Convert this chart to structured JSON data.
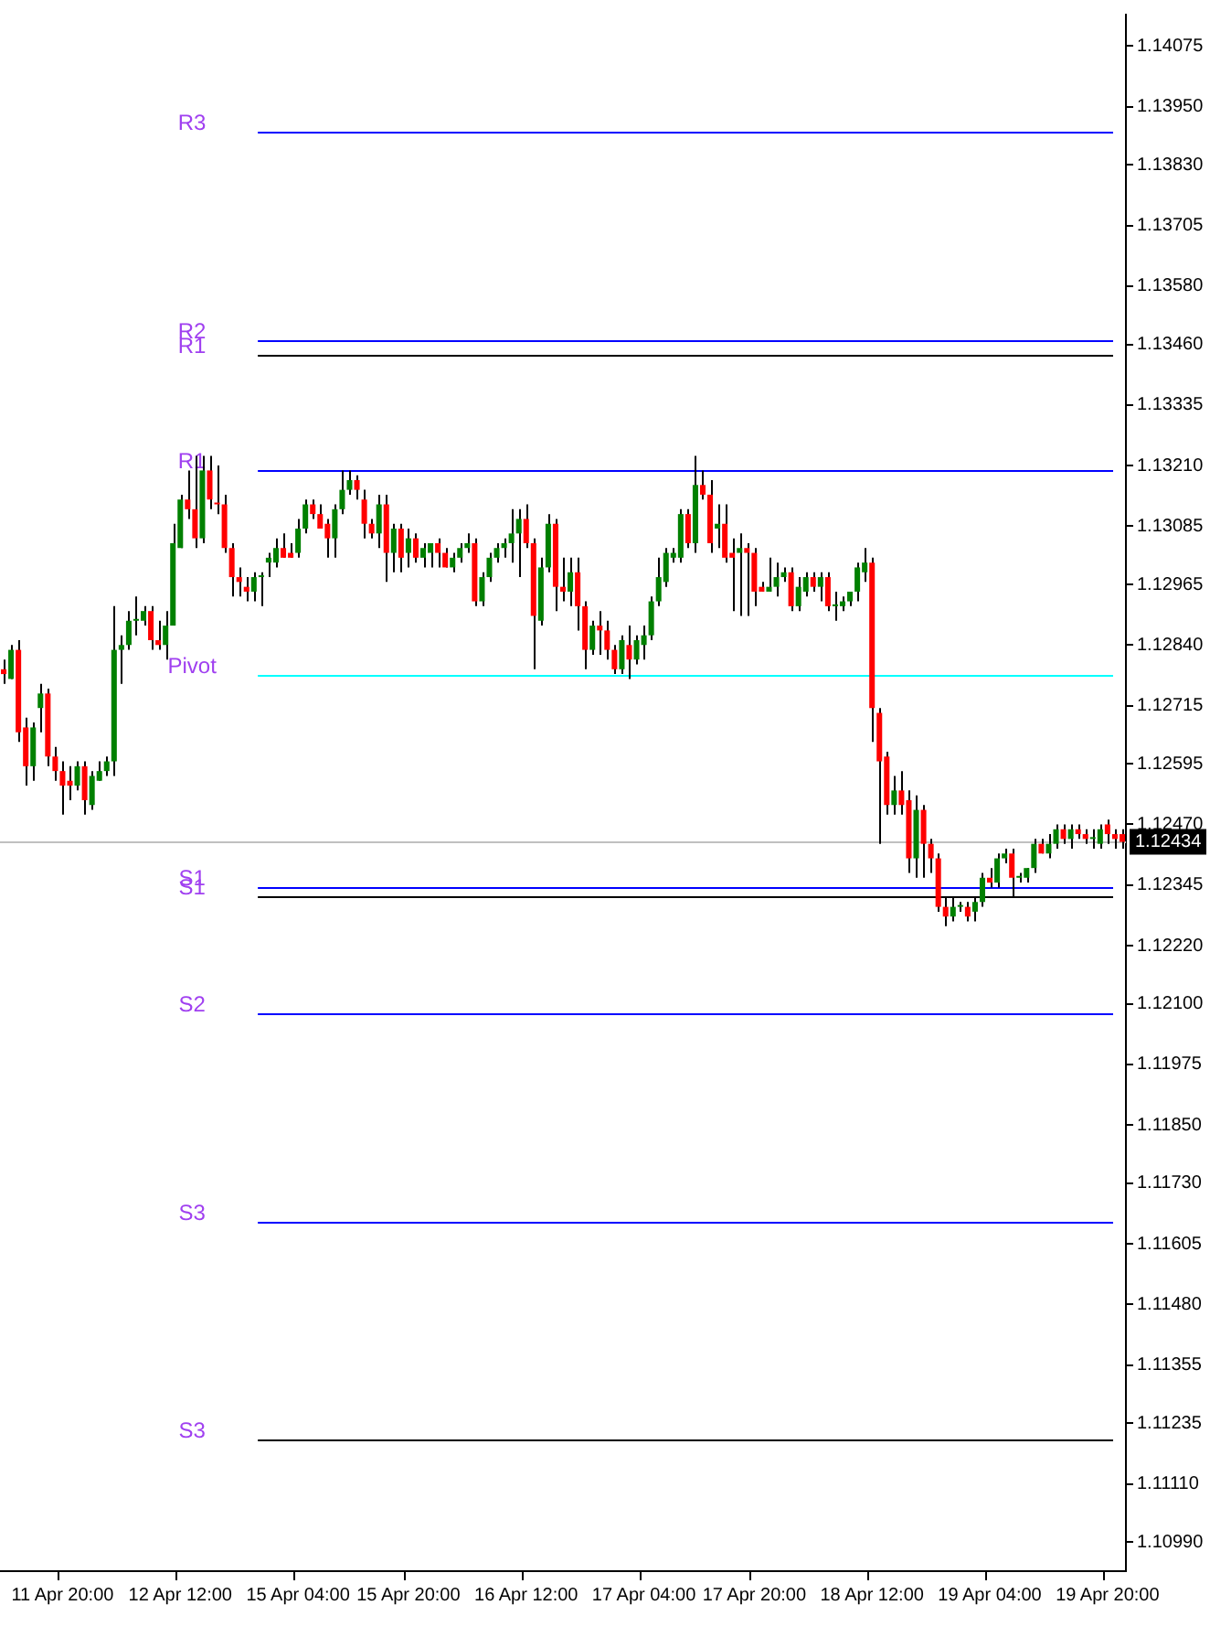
{
  "chart_data": {
    "type": "candlestick",
    "categories": [
      null,
      null,
      null,
      null,
      null,
      null,
      null,
      null,
      "11 Apr 20:00",
      null,
      null,
      null,
      null,
      null,
      null,
      null,
      null,
      null,
      null,
      null,
      null,
      null,
      null,
      null,
      "12 Apr 12:00",
      null,
      null,
      null,
      null,
      null,
      null,
      null,
      null,
      null,
      null,
      null,
      null,
      null,
      null,
      null,
      "15 Apr 04:00",
      null,
      null,
      null,
      null,
      null,
      null,
      null,
      null,
      null,
      null,
      null,
      null,
      null,
      null,
      "15 Apr 20:00",
      null,
      null,
      null,
      null,
      null,
      null,
      null,
      null,
      null,
      null,
      null,
      null,
      null,
      null,
      null,
      "16 Apr 12:00",
      null,
      null,
      null,
      null,
      null,
      null,
      null,
      null,
      null,
      null,
      null,
      null,
      null,
      null,
      null,
      "17 Apr 04:00",
      null,
      null,
      null,
      null,
      null,
      null,
      null,
      null,
      null,
      null,
      null,
      null,
      null,
      null,
      "17 Apr 20:00",
      null,
      null,
      null,
      null,
      null,
      null,
      null,
      null,
      null,
      null,
      null,
      null,
      null,
      null,
      null,
      "18 Apr 12:00",
      null,
      null,
      null,
      null,
      null,
      null,
      null,
      null,
      null,
      null,
      null,
      null,
      null,
      null,
      null,
      "19 Apr 04:00",
      null,
      null,
      null,
      null,
      null,
      null,
      null,
      null,
      null,
      null,
      null,
      null,
      null,
      null,
      null,
      "19 Apr 20:00",
      null,
      null
    ],
    "ohlc": [
      [
        1.1279,
        1.1281,
        1.1276,
        1.1278
      ],
      [
        1.1277,
        1.1284,
        1.1277,
        1.1283
      ],
      [
        1.1283,
        1.1285,
        1.1264,
        1.1266
      ],
      [
        1.1267,
        1.1269,
        1.1255,
        1.1259
      ],
      [
        1.1259,
        1.1268,
        1.1256,
        1.1267
      ],
      [
        1.1271,
        1.1276,
        1.1266,
        1.1274
      ],
      [
        1.1274,
        1.1275,
        1.1259,
        1.1261
      ],
      [
        1.1261,
        1.1263,
        1.1256,
        1.1258
      ],
      [
        1.1258,
        1.126,
        1.1249,
        1.1255
      ],
      [
        1.1256,
        1.1259,
        1.1252,
        1.1255
      ],
      [
        1.1255,
        1.126,
        1.1254,
        1.1259
      ],
      [
        1.1259,
        1.126,
        1.1249,
        1.1252
      ],
      [
        1.1251,
        1.1258,
        1.125,
        1.1257
      ],
      [
        1.1256,
        1.126,
        1.1256,
        1.1258
      ],
      [
        1.1258,
        1.1261,
        1.1257,
        1.126
      ],
      [
        1.126,
        1.1292,
        1.1257,
        1.1283
      ],
      [
        1.1283,
        1.1286,
        1.1276,
        1.1284
      ],
      [
        1.1284,
        1.1291,
        1.1283,
        1.1289
      ],
      [
        1.1289,
        1.1294,
        1.1286,
        1.1289
      ],
      [
        1.1289,
        1.1292,
        1.1288,
        1.1291
      ],
      [
        1.1291,
        1.1292,
        1.1283,
        1.1285
      ],
      [
        1.1285,
        1.1289,
        1.1283,
        1.1284
      ],
      [
        1.1284,
        1.1291,
        1.1281,
        1.1288
      ],
      [
        1.1288,
        1.1309,
        1.1288,
        1.1305
      ],
      [
        1.1304,
        1.1315,
        1.1304,
        1.1314
      ],
      [
        1.1314,
        1.132,
        1.131,
        1.1312
      ],
      [
        1.1312,
        1.1323,
        1.1304,
        1.1306
      ],
      [
        1.1306,
        1.1323,
        1.1305,
        1.132
      ],
      [
        1.132,
        1.1323,
        1.1312,
        1.1314
      ],
      [
        1.1313,
        1.1321,
        1.1311,
        1.1313
      ],
      [
        1.1313,
        1.1315,
        1.1303,
        1.1304
      ],
      [
        1.1304,
        1.1305,
        1.1294,
        1.1298
      ],
      [
        1.1298,
        1.13,
        1.1294,
        1.1297
      ],
      [
        1.1296,
        1.1298,
        1.1293,
        1.1295
      ],
      [
        1.1295,
        1.1299,
        1.1293,
        1.1298
      ],
      [
        1.1298,
        1.1299,
        1.1292,
        1.1298
      ],
      [
        1.1301,
        1.1303,
        1.1298,
        1.1302
      ],
      [
        1.1301,
        1.1306,
        1.13,
        1.1304
      ],
      [
        1.1304,
        1.1307,
        1.1302,
        1.1302
      ],
      [
        1.1303,
        1.1305,
        1.1302,
        1.1302
      ],
      [
        1.1303,
        1.131,
        1.1302,
        1.1308
      ],
      [
        1.1308,
        1.1314,
        1.1307,
        1.1313
      ],
      [
        1.1313,
        1.1314,
        1.131,
        1.1311
      ],
      [
        1.1311,
        1.1313,
        1.1308,
        1.1308
      ],
      [
        1.1309,
        1.131,
        1.1302,
        1.1306
      ],
      [
        1.1306,
        1.1313,
        1.1302,
        1.1312
      ],
      [
        1.1312,
        1.132,
        1.1311,
        1.1316
      ],
      [
        1.1316,
        1.132,
        1.1315,
        1.1318
      ],
      [
        1.1318,
        1.1319,
        1.1314,
        1.1316
      ],
      [
        1.1314,
        1.1316,
        1.1306,
        1.1309
      ],
      [
        1.1309,
        1.131,
        1.1306,
        1.1307
      ],
      [
        1.1307,
        1.1315,
        1.1304,
        1.1313
      ],
      [
        1.1313,
        1.1315,
        1.1297,
        1.1303
      ],
      [
        1.1303,
        1.1309,
        1.1299,
        1.1308
      ],
      [
        1.1308,
        1.1309,
        1.1299,
        1.1302
      ],
      [
        1.1303,
        1.1308,
        1.13,
        1.1306
      ],
      [
        1.1306,
        1.1307,
        1.1301,
        1.1302
      ],
      [
        1.1302,
        1.1305,
        1.13,
        1.1304
      ],
      [
        1.1303,
        1.1305,
        1.13,
        1.1305
      ],
      [
        1.1305,
        1.1306,
        1.13,
        1.1303
      ],
      [
        1.1303,
        1.1304,
        1.13,
        1.13
      ],
      [
        1.13,
        1.1303,
        1.1299,
        1.1302
      ],
      [
        1.1302,
        1.1305,
        1.1301,
        1.1304
      ],
      [
        1.1304,
        1.1307,
        1.1303,
        1.1305
      ],
      [
        1.1305,
        1.1306,
        1.1292,
        1.1293
      ],
      [
        1.1293,
        1.1299,
        1.1292,
        1.1298
      ],
      [
        1.1298,
        1.1303,
        1.1297,
        1.1302
      ],
      [
        1.1302,
        1.1305,
        1.1301,
        1.1304
      ],
      [
        1.1304,
        1.1306,
        1.1302,
        1.1305
      ],
      [
        1.1305,
        1.1312,
        1.1301,
        1.1307
      ],
      [
        1.1307,
        1.1312,
        1.1298,
        1.131
      ],
      [
        1.131,
        1.1313,
        1.1304,
        1.1305
      ],
      [
        1.1305,
        1.1306,
        1.1279,
        1.129
      ],
      [
        1.1289,
        1.1302,
        1.1288,
        1.13
      ],
      [
        1.13,
        1.1311,
        1.1299,
        1.1309
      ],
      [
        1.1309,
        1.131,
        1.1291,
        1.1296
      ],
      [
        1.1296,
        1.1302,
        1.1293,
        1.1295
      ],
      [
        1.1295,
        1.1302,
        1.1292,
        1.1299
      ],
      [
        1.1299,
        1.1302,
        1.1287,
        1.1292
      ],
      [
        1.1292,
        1.1293,
        1.1279,
        1.1283
      ],
      [
        1.1283,
        1.1289,
        1.1282,
        1.1288
      ],
      [
        1.1288,
        1.1291,
        1.1282,
        1.1287
      ],
      [
        1.1287,
        1.1289,
        1.1281,
        1.1283
      ],
      [
        1.1283,
        1.1284,
        1.1278,
        1.1279
      ],
      [
        1.1279,
        1.1286,
        1.1278,
        1.1285
      ],
      [
        1.1284,
        1.1288,
        1.1277,
        1.1281
      ],
      [
        1.1281,
        1.1286,
        1.128,
        1.1285
      ],
      [
        1.1284,
        1.1288,
        1.1281,
        1.1286
      ],
      [
        1.1286,
        1.1294,
        1.1285,
        1.1293
      ],
      [
        1.1293,
        1.1302,
        1.1292,
        1.1298
      ],
      [
        1.1297,
        1.1304,
        1.1296,
        1.1303
      ],
      [
        1.1302,
        1.1304,
        1.1301,
        1.1303
      ],
      [
        1.1302,
        1.1312,
        1.1301,
        1.1311
      ],
      [
        1.1311,
        1.1312,
        1.1304,
        1.1305
      ],
      [
        1.1305,
        1.1323,
        1.1303,
        1.1317
      ],
      [
        1.1317,
        1.132,
        1.1314,
        1.1315
      ],
      [
        1.1315,
        1.1318,
        1.1303,
        1.1305
      ],
      [
        1.1308,
        1.1313,
        1.1304,
        1.1309
      ],
      [
        1.1309,
        1.1313,
        1.1301,
        1.1302
      ],
      [
        1.1303,
        1.1306,
        1.1291,
        1.1302
      ],
      [
        1.1303,
        1.1307,
        1.129,
        1.1304
      ],
      [
        1.1304,
        1.1305,
        1.129,
        1.1303
      ],
      [
        1.1303,
        1.1304,
        1.1292,
        1.1295
      ],
      [
        1.1296,
        1.1297,
        1.1295,
        1.1295
      ],
      [
        1.1295,
        1.1302,
        1.1295,
        1.1296
      ],
      [
        1.1296,
        1.1301,
        1.1294,
        1.1298
      ],
      [
        1.1298,
        1.13,
        1.1297,
        1.1299
      ],
      [
        1.1299,
        1.13,
        1.1291,
        1.1292
      ],
      [
        1.1292,
        1.1298,
        1.1291,
        1.1296
      ],
      [
        1.1295,
        1.1299,
        1.1294,
        1.1298
      ],
      [
        1.1298,
        1.1299,
        1.1295,
        1.1296
      ],
      [
        1.1296,
        1.1299,
        1.1293,
        1.1298
      ],
      [
        1.1298,
        1.1299,
        1.1291,
        1.1292
      ],
      [
        1.1292,
        1.1295,
        1.1289,
        1.1292
      ],
      [
        1.1292,
        1.1294,
        1.1291,
        1.1293
      ],
      [
        1.1293,
        1.1295,
        1.1292,
        1.1295
      ],
      [
        1.1295,
        1.1301,
        1.1293,
        1.13
      ],
      [
        1.1299,
        1.1304,
        1.1297,
        1.1301
      ],
      [
        1.1301,
        1.1302,
        1.1264,
        1.1271
      ],
      [
        1.127,
        1.1271,
        1.1243,
        1.126
      ],
      [
        1.1261,
        1.1262,
        1.1249,
        1.1251
      ],
      [
        1.1251,
        1.1257,
        1.1249,
        1.1254
      ],
      [
        1.1254,
        1.1258,
        1.1249,
        1.1251
      ],
      [
        1.1252,
        1.1254,
        1.1237,
        1.124
      ],
      [
        1.124,
        1.1253,
        1.1236,
        1.125
      ],
      [
        1.125,
        1.1251,
        1.1236,
        1.1243
      ],
      [
        1.1243,
        1.1244,
        1.1237,
        1.124
      ],
      [
        1.124,
        1.1241,
        1.1229,
        1.123
      ],
      [
        1.123,
        1.1232,
        1.1226,
        1.1228
      ],
      [
        1.1228,
        1.1232,
        1.1227,
        1.123
      ],
      [
        1.123,
        1.1231,
        1.1229,
        1.123
      ],
      [
        1.123,
        1.1231,
        1.1227,
        1.1228
      ],
      [
        1.1229,
        1.1232,
        1.1227,
        1.1231
      ],
      [
        1.1231,
        1.1237,
        1.123,
        1.1236
      ],
      [
        1.1236,
        1.1238,
        1.1234,
        1.1235
      ],
      [
        1.1235,
        1.1241,
        1.1234,
        1.124
      ],
      [
        1.124,
        1.1242,
        1.1239,
        1.1241
      ],
      [
        1.1241,
        1.1242,
        1.1232,
        1.1236
      ],
      [
        1.1236,
        1.1237,
        1.1235,
        1.1236
      ],
      [
        1.1236,
        1.1238,
        1.1235,
        1.1238
      ],
      [
        1.1238,
        1.1244,
        1.1237,
        1.1243
      ],
      [
        1.1243,
        1.1244,
        1.1241,
        1.1241
      ],
      [
        1.1241,
        1.1245,
        1.124,
        1.1243
      ],
      [
        1.1243,
        1.1247,
        1.1242,
        1.1246
      ],
      [
        1.1246,
        1.1247,
        1.1243,
        1.1244
      ],
      [
        1.1244,
        1.1247,
        1.1242,
        1.1246
      ],
      [
        1.1246,
        1.1247,
        1.1244,
        1.1245
      ],
      [
        1.1245,
        1.1246,
        1.1243,
        1.1244
      ],
      [
        1.1244,
        1.1246,
        1.1242,
        1.1244
      ],
      [
        1.1243,
        1.1247,
        1.1242,
        1.1246
      ],
      [
        1.1247,
        1.1248,
        1.1243,
        1.1245
      ],
      [
        1.1245,
        1.1246,
        1.1242,
        1.1244
      ],
      [
        1.1245,
        1.1246,
        1.1242,
        1.12434
      ]
    ],
    "colors": [
      "#ff0000",
      "#008000",
      "#ff0000",
      "#ff0000",
      "#008000",
      "#008000",
      "#ff0000",
      "#ff0000",
      "#ff0000",
      "#ff0000",
      "#008000",
      "#ff0000",
      "#008000",
      "#008000",
      "#008000",
      "#008000",
      "#008000",
      "#008000",
      "#008000",
      "#008000",
      "#ff0000",
      "#ff0000",
      "#008000",
      "#008000",
      "#008000",
      "#ff0000",
      "#ff0000",
      "#008000",
      "#ff0000",
      "#ff0000",
      "#ff0000",
      "#ff0000",
      "#ff0000",
      "#ff0000",
      "#008000",
      "#008000",
      "#008000",
      "#008000",
      "#ff0000",
      "#ff0000",
      "#008000",
      "#008000",
      "#ff0000",
      "#ff0000",
      "#ff0000",
      "#008000",
      "#008000",
      "#008000",
      "#ff0000",
      "#ff0000",
      "#ff0000",
      "#008000",
      "#ff0000",
      "#008000",
      "#ff0000",
      "#008000",
      "#ff0000",
      "#008000",
      "#008000",
      "#ff0000",
      "#ff0000",
      "#008000",
      "#008000",
      "#008000",
      "#ff0000",
      "#008000",
      "#008000",
      "#008000",
      "#008000",
      "#008000",
      "#008000",
      "#ff0000",
      "#ff0000",
      "#008000",
      "#008000",
      "#ff0000",
      "#ff0000",
      "#008000",
      "#ff0000",
      "#ff0000",
      "#008000",
      "#ff0000",
      "#ff0000",
      "#ff0000",
      "#008000",
      "#ff0000",
      "#008000",
      "#008000",
      "#008000",
      "#008000",
      "#008000",
      "#008000",
      "#008000",
      "#ff0000",
      "#008000",
      "#ff0000",
      "#ff0000",
      "#008000",
      "#ff0000",
      "#ff0000",
      "#008000",
      "#ff0000",
      "#ff0000",
      "#ff0000",
      "#008000",
      "#008000",
      "#008000",
      "#ff0000",
      "#008000",
      "#008000",
      "#ff0000",
      "#008000",
      "#ff0000",
      "#008000",
      "#008000",
      "#008000",
      "#008000",
      "#008000",
      "#ff0000",
      "#ff0000",
      "#ff0000",
      "#008000",
      "#ff0000",
      "#ff0000",
      "#008000",
      "#ff0000",
      "#ff0000",
      "#ff0000",
      "#ff0000",
      "#008000",
      "#008000",
      "#ff0000",
      "#008000",
      "#008000",
      "#ff0000",
      "#008000",
      "#008000",
      "#ff0000",
      "#008000",
      "#008000",
      "#008000",
      "#ff0000",
      "#008000",
      "#008000",
      "#ff0000",
      "#008000",
      "#ff0000",
      "#ff0000",
      "#008000",
      "#008000",
      "#ff0000",
      "#ff0000",
      "#ff0000"
    ],
    "ylim": [
      1.1093,
      1.1414
    ],
    "yticks": [
      1.14075,
      {
        "value": 1.1395,
        "label": "1.13950"
      },
      {
        "value": 1.1383,
        "label": "1.13830"
      },
      1.13705,
      {
        "value": 1.1358,
        "label": "1.13580"
      },
      {
        "value": 1.1346,
        "label": "1.13460"
      },
      1.13335,
      {
        "value": 1.1321,
        "label": "1.13210"
      },
      1.13085,
      1.12965,
      {
        "value": 1.1284,
        "label": "1.12840"
      },
      1.12715,
      1.12595,
      {
        "value": 1.1247,
        "label": "1.12470"
      },
      1.12345,
      {
        "value": 1.1222,
        "label": "1.12220"
      },
      {
        "value": 1.121,
        "label": "1.12100"
      },
      1.11975,
      {
        "value": 1.1185,
        "label": "1.11850"
      },
      {
        "value": 1.1173,
        "label": "1.11730"
      },
      1.11605,
      {
        "value": 1.1148,
        "label": "1.11480"
      },
      1.11355,
      1.11235,
      {
        "value": 1.1111,
        "label": "1.11110"
      },
      {
        "value": 1.1099,
        "label": "1.10990"
      }
    ],
    "ref_lines": [
      {
        "axis": "y",
        "value": 1.12434,
        "label": "1.12434",
        "color": "#c0c0c0"
      },
      {
        "axis": "y",
        "value": 1.139,
        "label": "R3",
        "color": "#0000ff"
      },
      {
        "axis": "y",
        "value": 1.1347,
        "label": "R2",
        "color": "#0000ff"
      },
      {
        "axis": "y",
        "value": 1.1344,
        "label": "R1",
        "color": "#000000"
      },
      {
        "axis": "y",
        "value": 1.132,
        "label": "R1",
        "color": "#0000ff"
      },
      {
        "axis": "y",
        "value": 1.1278,
        "label": "Pivot",
        "color": "#00ffff"
      },
      {
        "axis": "y",
        "value": 1.1234,
        "label": "S1",
        "color": "#0000ff"
      },
      {
        "axis": "y",
        "value": 1.1232,
        "label": "S1",
        "color": "#000000"
      },
      {
        "axis": "y",
        "value": 1.1208,
        "label": "S2",
        "color": "#0000ff"
      },
      {
        "axis": "y",
        "value": 1.1165,
        "label": "S3",
        "color": "#0000ff"
      },
      {
        "axis": "y",
        "value": 1.112,
        "label": "S3",
        "color": "#000000"
      }
    ]
  }
}
